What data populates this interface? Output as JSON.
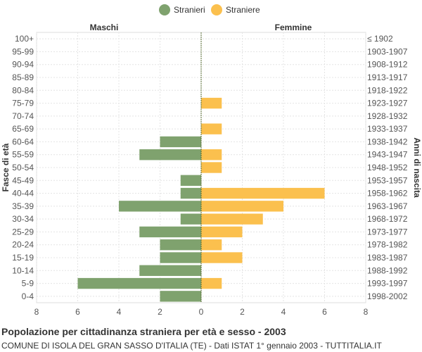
{
  "chart_data": {
    "type": "bar",
    "orientation": "horizontal-pyramid",
    "title": "Popolazione per cittadinanza straniera per età e sesso - 2003",
    "subtitle": "COMUNE DI ISOLA DEL GRAN SASSO D'ITALIA (TE) - Dati ISTAT 1° gennaio 2003 - TUTTITALIA.IT",
    "ylabel_left": "Fasce di età",
    "ylabel_right": "Anni di nascita",
    "left_header": "Maschi",
    "right_header": "Femmine",
    "categories": [
      "100+",
      "95-99",
      "90-94",
      "85-89",
      "80-84",
      "75-79",
      "70-74",
      "65-69",
      "60-64",
      "55-59",
      "50-54",
      "45-49",
      "40-44",
      "35-39",
      "30-34",
      "25-29",
      "20-24",
      "15-19",
      "10-14",
      "5-9",
      "0-4"
    ],
    "birth_years": [
      "≤ 1902",
      "1903-1907",
      "1908-1912",
      "1913-1917",
      "1918-1922",
      "1923-1927",
      "1928-1932",
      "1933-1937",
      "1938-1942",
      "1943-1947",
      "1948-1952",
      "1953-1957",
      "1958-1962",
      "1963-1967",
      "1968-1972",
      "1973-1977",
      "1978-1982",
      "1983-1987",
      "1988-1992",
      "1993-1997",
      "1998-2002"
    ],
    "series": [
      {
        "name": "Stranieri",
        "color": "#7fa26e",
        "values": [
          0,
          0,
          0,
          0,
          0,
          0,
          0,
          0,
          2,
          3,
          0,
          1,
          1,
          4,
          1,
          3,
          2,
          2,
          3,
          6,
          2
        ]
      },
      {
        "name": "Straniere",
        "color": "#fbc04e",
        "values": [
          0,
          0,
          0,
          0,
          0,
          1,
          0,
          1,
          0,
          1,
          1,
          0,
          6,
          4,
          3,
          2,
          1,
          2,
          0,
          1,
          0
        ]
      }
    ],
    "xlim": [
      -8,
      8
    ],
    "xticks": [
      "8",
      "6",
      "4",
      "2",
      "0",
      "2",
      "4",
      "6",
      "8"
    ],
    "grid": true,
    "legend_position": "top-center"
  }
}
